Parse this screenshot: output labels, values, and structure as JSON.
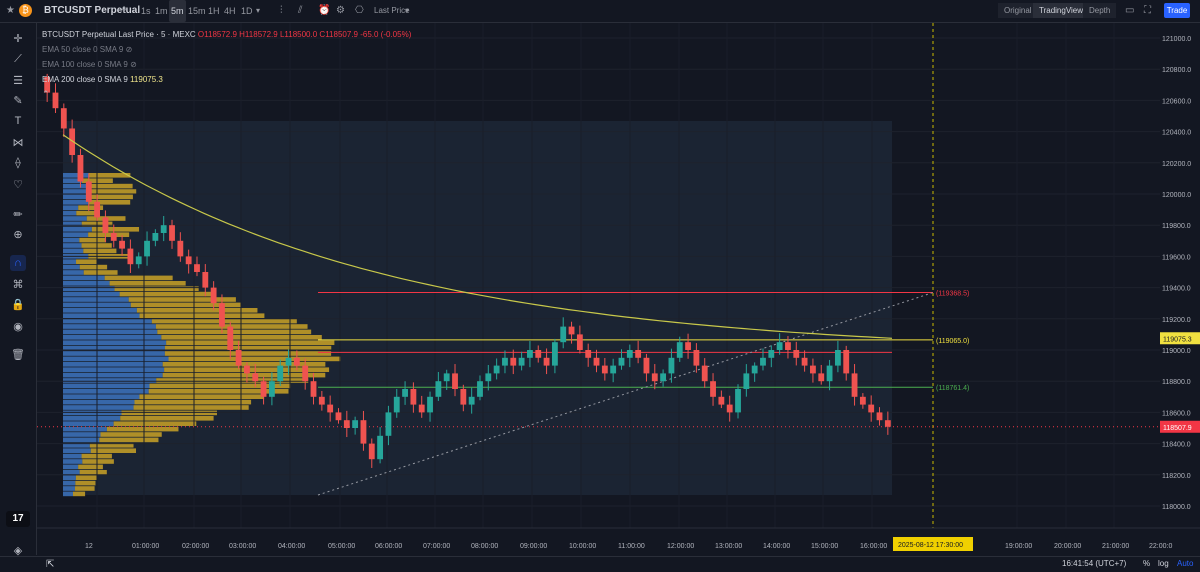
{
  "header": {
    "symbol": "BTCUSDT Perpetual",
    "timeframes": [
      "1s",
      "1m",
      "5m",
      "15m",
      "1H",
      "4H",
      "1D"
    ],
    "active_timeframe": "5m",
    "price_source": "Last Price",
    "views": [
      "Original",
      "TradingView",
      "Depth"
    ],
    "active_view": "TradingView",
    "trade_label": "Trade"
  },
  "legend": {
    "title": "BTCUSDT Perpetual Last Price · 5 · MEXC",
    "ohlc": {
      "o": "O118572.9",
      "h": "H118572.9",
      "l": "L118500.0",
      "c": "C118507.9",
      "chg": "-65.0 (-0.05%)"
    },
    "ema50": "EMA 50 close 0 SMA 9",
    "ema100": "EMA 100 close 0 SMA 9",
    "ema200": "EMA 200 close 0 SMA 9",
    "ema200_value": "119075.3"
  },
  "levels": {
    "upper": "(119368.5)",
    "mid": "(119065.0)",
    "lower": "(118761.4)"
  },
  "chart_data": {
    "type": "candlestick",
    "y_ticks": [
      121000,
      120800,
      120600,
      120400,
      120200,
      120000,
      119800,
      119600,
      119400,
      119200,
      119000,
      118800,
      118600,
      118400,
      118200,
      118000
    ],
    "y_tick_labels": [
      "121000.0",
      "120800.0",
      "120600.0",
      "120400.0",
      "120200.0",
      "120000.0",
      "119800.0",
      "119600.0",
      "119400.0",
      "119200.0",
      "119000.0",
      "118800.0",
      "118600.0",
      "118400.0",
      "118200.0",
      "118000.0"
    ],
    "x_ticks": [
      "12",
      "01:00:00",
      "02:00:00",
      "03:00:00",
      "04:00:00",
      "05:00:00",
      "06:00:00",
      "07:00:00",
      "08:00:00",
      "09:00:00",
      "10:00:00",
      "11:00:00",
      "12:00:00",
      "13:00:00",
      "14:00:00",
      "15:00:00",
      "16:00:00",
      "17:30:00",
      "19:00:00",
      "20:00:00",
      "21:00:00",
      "22:00:0"
    ],
    "crosshair_date": "2025-08-12",
    "crosshair_time": "17:30:00",
    "last_price": "118507.9",
    "ema_price": "119075.3",
    "close_series": [
      120650,
      120550,
      120420,
      120250,
      120080,
      119950,
      119850,
      119750,
      119700,
      119650,
      119550,
      119600,
      119700,
      119750,
      119800,
      119700,
      119600,
      119550,
      119500,
      119400,
      119300,
      119150,
      119000,
      118900,
      118850,
      118800,
      118700,
      118800,
      118900,
      118950,
      118900,
      118800,
      118700,
      118650,
      118600,
      118550,
      118500,
      118550,
      118400,
      118300,
      118450,
      118600,
      118700,
      118750,
      118650,
      118600,
      118700,
      118800,
      118850,
      118750,
      118650,
      118700,
      118800,
      118850,
      118900,
      118950,
      118900,
      118950,
      119000,
      118950,
      118900,
      119050,
      119150,
      119100,
      119000,
      118950,
      118900,
      118850,
      118900,
      118950,
      119000,
      118950,
      118850,
      118800,
      118850,
      118950,
      119050,
      119000,
      118900,
      118800,
      118700,
      118650,
      118600,
      118750,
      118850,
      118900,
      118950,
      119000,
      119050,
      119000,
      118950,
      118900,
      118850,
      118800,
      118900,
      119000,
      118850,
      118700,
      118650,
      118600,
      118550,
      118507.9
    ]
  },
  "bottom": {
    "clock": "16:41:54 (UTC+7)",
    "pct": "%",
    "log": "log",
    "auto": "Auto"
  },
  "tools": [
    "crosshair-icon",
    "trend-line-icon",
    "fib-icon",
    "brush-icon",
    "text-icon",
    "pattern-icon",
    "ruler-icon",
    "heart-icon",
    "pencil-icon",
    "zoom-icon",
    "magnet-icon",
    "lock-draw-icon",
    "lock-icon",
    "eye-icon",
    "trash-icon"
  ],
  "tool_glyphs": [
    "✛",
    "⟋",
    "☰",
    "✎",
    "T",
    "⋈",
    "⟠",
    "♡",
    "✏",
    "⊕",
    "∩",
    "⌘",
    "🔒",
    "◉",
    "🗑"
  ]
}
